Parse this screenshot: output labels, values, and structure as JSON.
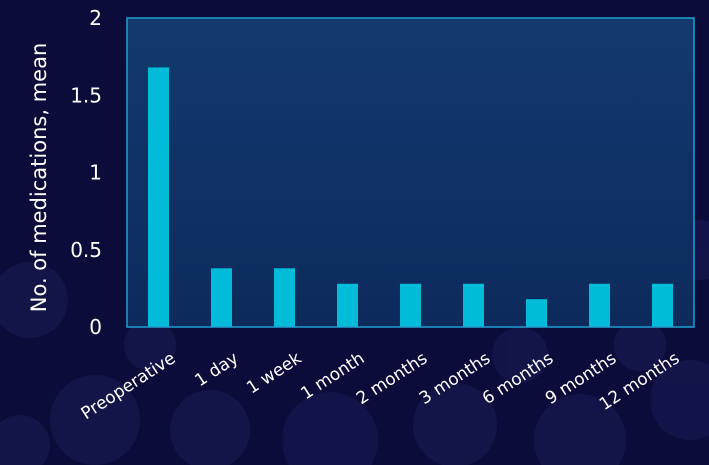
{
  "chart_data": {
    "type": "bar",
    "categories": [
      "Preoperative",
      "1 day",
      "1 week",
      "1 month",
      "2 months",
      "3 months",
      "6 months",
      "9 months",
      "12 months"
    ],
    "values": [
      1.68,
      0.38,
      0.38,
      0.28,
      0.28,
      0.28,
      0.18,
      0.28,
      0.28
    ],
    "ylabel": "No. of medications, mean",
    "xlabel": "",
    "ylim": [
      0,
      2
    ],
    "yticks": [
      0,
      0.5,
      1,
      1.5,
      2
    ],
    "ytick_labels": [
      "0",
      "0.5",
      "1",
      "1.5",
      "2"
    ],
    "grid": false,
    "colors": {
      "bar": "#00bcd8",
      "plot_border": "#1fa0d0",
      "background": "#0b0c3a",
      "plot_fill_top": "#123a6e",
      "plot_fill_bottom": "#0d2a5c"
    }
  }
}
